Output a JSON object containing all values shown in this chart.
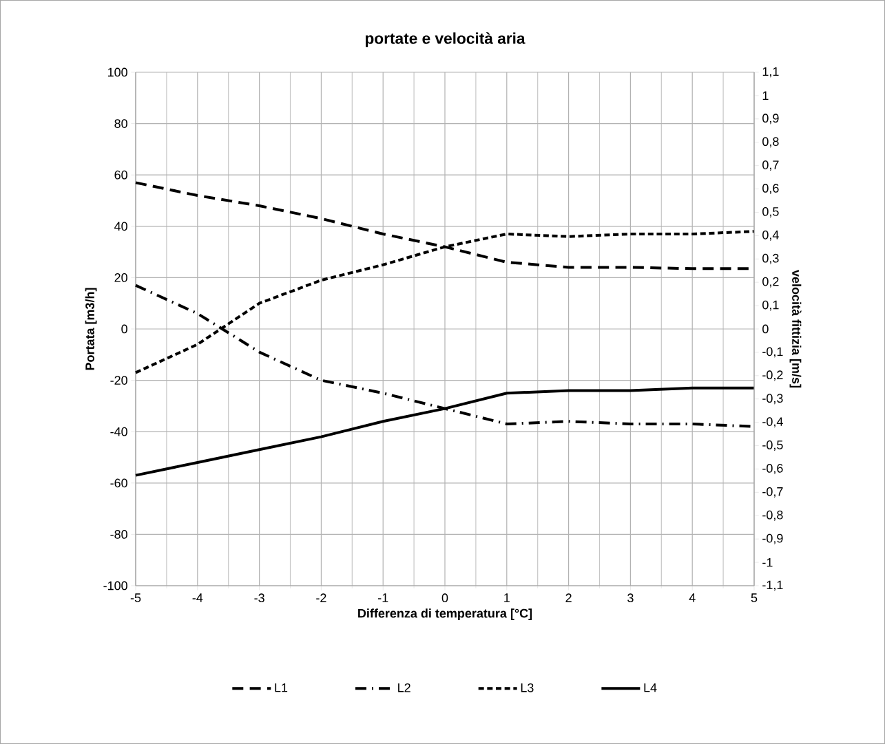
{
  "chart_data": {
    "type": "line",
    "title": "portate e velocità aria",
    "xlabel": "Differenza di temperatura [°C]",
    "ylabel": "Portata [m3/h]",
    "y2label": "velocità fittizia [m/s]",
    "x": [
      -5,
      -4,
      -3,
      -2,
      -1,
      0,
      1,
      2,
      3,
      4,
      5
    ],
    "series": [
      {
        "name": "L1",
        "color": "#000000",
        "line_style": "dashed",
        "values": [
          57,
          52,
          48,
          43,
          37,
          32,
          26,
          24,
          24,
          23.5,
          23.5
        ]
      },
      {
        "name": "L2",
        "color": "#000000",
        "line_style": "dashdot",
        "values": [
          17,
          6,
          -9,
          -20,
          -25,
          -31,
          -37,
          -36,
          -37,
          -37,
          -38
        ]
      },
      {
        "name": "L3",
        "color": "#000000",
        "line_style": "dotted",
        "values": [
          -17,
          -6,
          10,
          19,
          25,
          32,
          37,
          36,
          37,
          37,
          38
        ]
      },
      {
        "name": "L4",
        "color": "#000000",
        "line_style": "solid",
        "values": [
          -57,
          -52,
          -47,
          -42,
          -36,
          -31,
          -25,
          -24,
          -24,
          -23,
          -23
        ]
      }
    ],
    "xlim": [
      -5,
      5
    ],
    "xticks": [
      -5,
      -4,
      -3,
      -2,
      -1,
      0,
      1,
      2,
      3,
      4,
      5
    ],
    "ylim": [
      -100,
      100
    ],
    "yticks": [
      -100,
      -80,
      -60,
      -40,
      -20,
      0,
      20,
      40,
      60,
      80,
      100
    ],
    "y2lim": [
      -1.1,
      1.1
    ],
    "y2ticks": [
      {
        "value": -1.1,
        "label": "-1,1"
      },
      -1,
      {
        "value": -0.9,
        "label": "-0,9"
      },
      {
        "value": -0.8,
        "label": "-0,8"
      },
      {
        "value": -0.7,
        "label": "-0,7"
      },
      {
        "value": -0.6,
        "label": "-0,6"
      },
      {
        "value": -0.5,
        "label": "-0,5"
      },
      {
        "value": -0.4,
        "label": "-0,4"
      },
      {
        "value": -0.3,
        "label": "-0,3"
      },
      {
        "value": -0.2,
        "label": "-0,2"
      },
      {
        "value": -0.1,
        "label": "-0,1"
      },
      0,
      {
        "value": 0.1,
        "label": "0,1"
      },
      {
        "value": 0.2,
        "label": "0,2"
      },
      {
        "value": 0.3,
        "label": "0,3"
      },
      {
        "value": 0.4,
        "label": "0,4"
      },
      {
        "value": 0.5,
        "label": "0,5"
      },
      {
        "value": 0.6,
        "label": "0,6"
      },
      {
        "value": 0.7,
        "label": "0,7"
      },
      {
        "value": 0.8,
        "label": "0,8"
      },
      {
        "value": 0.9,
        "label": "0,9"
      },
      1,
      {
        "value": 1.1,
        "label": "1,1"
      }
    ],
    "grid": true,
    "legend": "bottom",
    "marker": "none"
  }
}
